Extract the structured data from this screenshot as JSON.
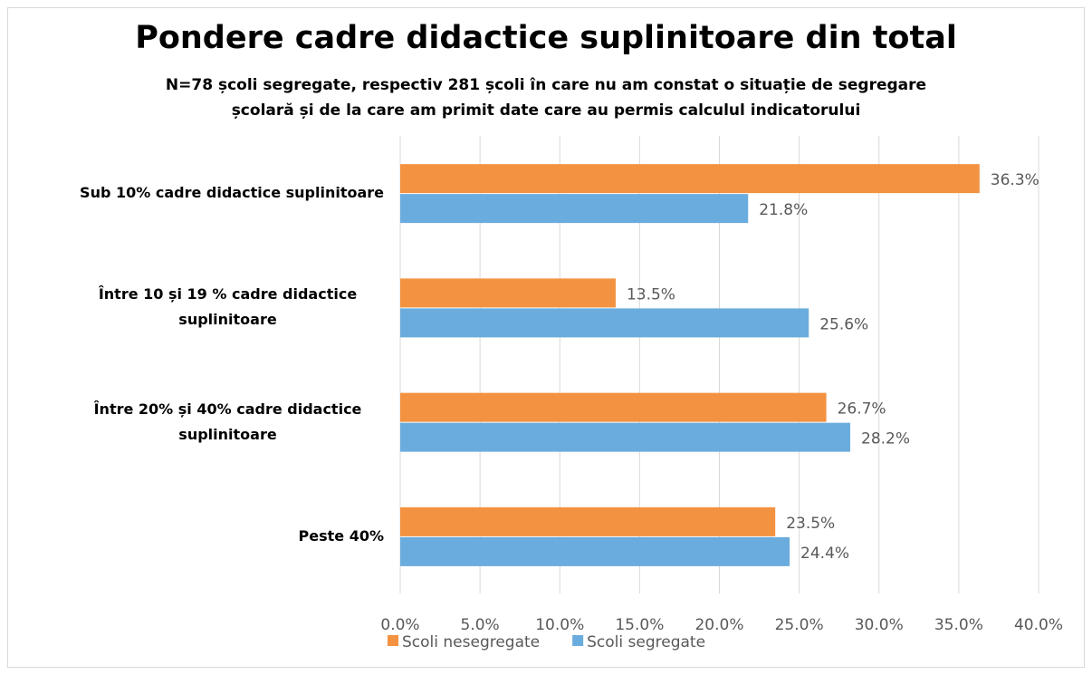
{
  "chart_data": {
    "type": "barh",
    "title": "Pondere cadre didactice suplinitoare din total",
    "subtitle": "N=78 școli segregate, respectiv 281 școli în care nu am constat o situație de segregare școlară și de la care am primit date care au permis calculul indicatorului",
    "categories": [
      "Sub 10% cadre didactice suplinitoare",
      "Între 10 și 19 % cadre didactice suplinitoare",
      "Între 20% și 40% cadre didactice suplinitoare",
      "Peste 40%"
    ],
    "series": [
      {
        "name": "Scoli nesegregate",
        "color": "#f39240",
        "values": [
          36.3,
          13.5,
          26.7,
          23.5
        ],
        "value_labels": [
          "36.3%",
          "13.5%",
          "26.7%",
          "23.5%"
        ]
      },
      {
        "name": "Scoli segregate",
        "color": "#6aacdd",
        "values": [
          21.8,
          25.6,
          28.2,
          24.4
        ],
        "value_labels": [
          "21.8%",
          "25.6%",
          "28.2%",
          "24.4%"
        ]
      }
    ],
    "xlim": [
      0,
      40
    ],
    "xticks": [
      {
        "value": 0,
        "label": "0.0%"
      },
      {
        "value": 5,
        "label": "5.0%"
      },
      {
        "value": 10,
        "label": "10.0%"
      },
      {
        "value": 15,
        "label": "15.0%"
      },
      {
        "value": 20,
        "label": "20.0%"
      },
      {
        "value": 25,
        "label": "25.0%"
      },
      {
        "value": 30,
        "label": "30.0%"
      },
      {
        "value": 35,
        "label": "35.0%"
      },
      {
        "value": 40,
        "label": "40.0%"
      }
    ],
    "grid": true,
    "legend": "bottom"
  }
}
